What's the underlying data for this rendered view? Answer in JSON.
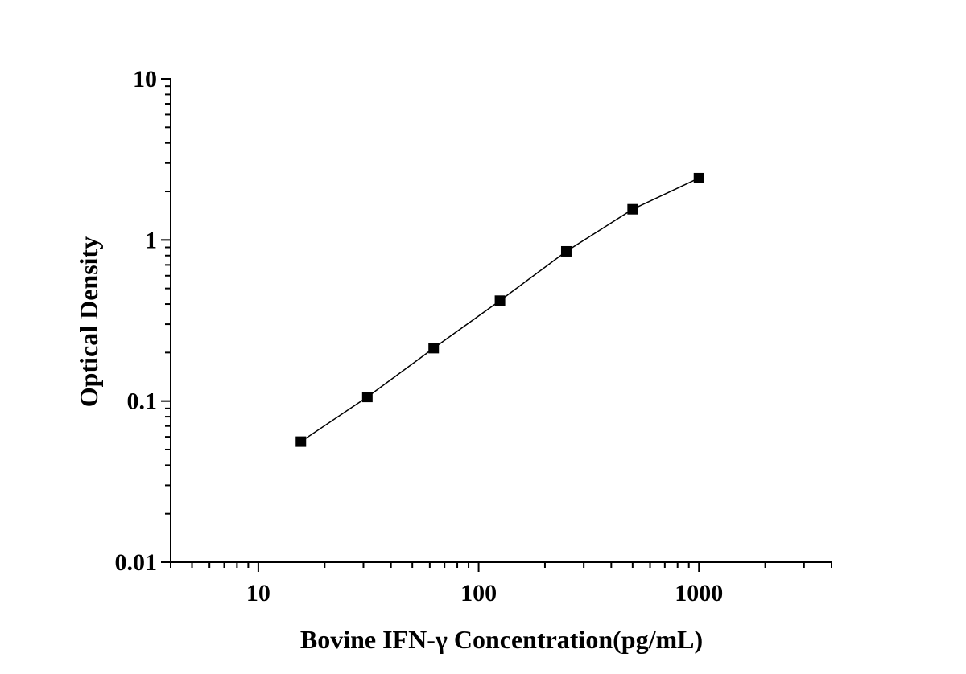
{
  "chart_data": {
    "type": "line",
    "xlabel": "Bovine IFN-γ Concentration(pg/mL)",
    "ylabel": "Optical Density",
    "xscale": "log",
    "yscale": "log",
    "xlim": [
      4,
      4000
    ],
    "ylim": [
      0.01,
      10
    ],
    "xticks": [
      {
        "value": 10,
        "label": "10"
      },
      {
        "value": 100,
        "label": "100"
      },
      {
        "value": 1000,
        "label": "1000"
      }
    ],
    "yticks": [
      {
        "value": 0.01,
        "label": "0.01"
      },
      {
        "value": 0.1,
        "label": "0.1"
      },
      {
        "value": 1,
        "label": "1"
      },
      {
        "value": 10,
        "label": "10"
      }
    ],
    "grid": false,
    "legend": "none",
    "marker": "square",
    "series": [
      {
        "color": "#000000",
        "x": [
          15.6,
          31.25,
          62.5,
          125,
          250,
          500,
          1000
        ],
        "y": [
          0.056,
          0.106,
          0.213,
          0.42,
          0.85,
          1.55,
          2.42
        ]
      }
    ]
  }
}
